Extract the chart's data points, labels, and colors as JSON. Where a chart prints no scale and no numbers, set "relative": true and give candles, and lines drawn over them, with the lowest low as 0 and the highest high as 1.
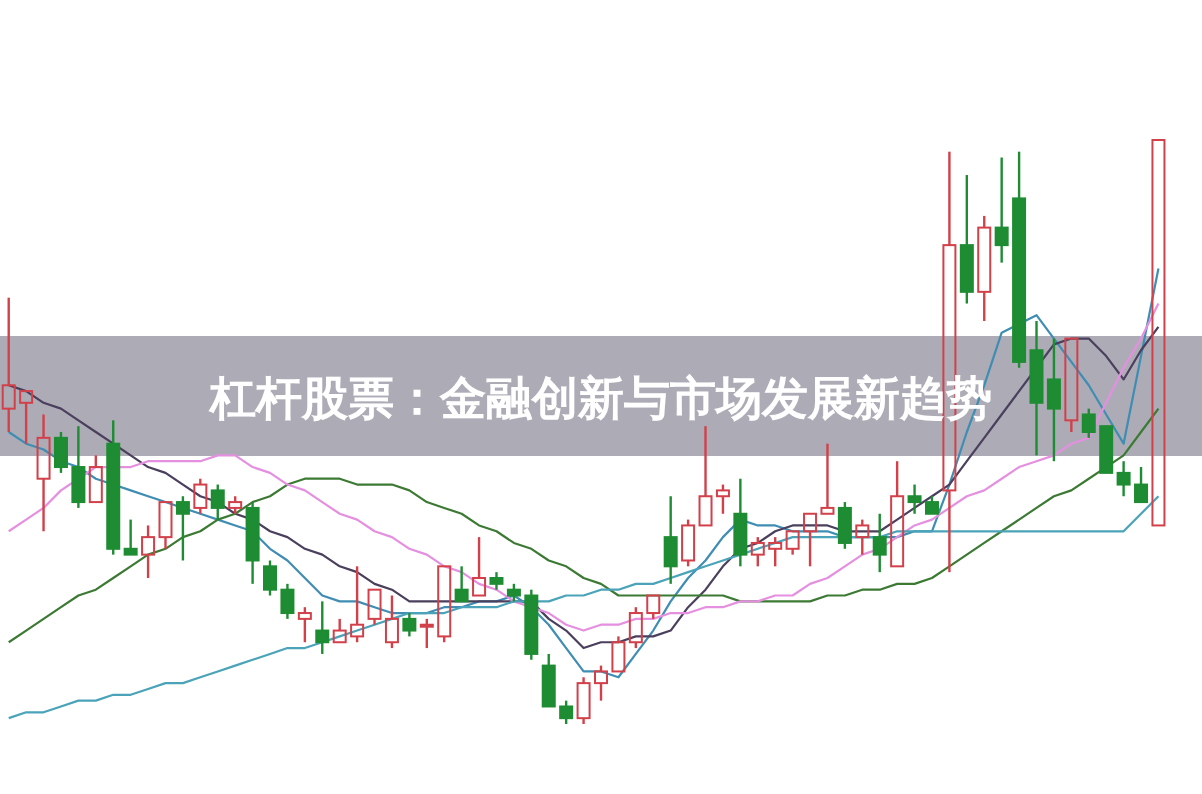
{
  "chart_data": {
    "type": "candlestick",
    "relative": true,
    "title": "杠杆股票：金融创新与市场发展新趋势",
    "categories": [
      null,
      null,
      null,
      null,
      null,
      null,
      null,
      null,
      null,
      null,
      null,
      null,
      null,
      null,
      null,
      null,
      null,
      null,
      null,
      null,
      null,
      null,
      null,
      null,
      null,
      null,
      null,
      null,
      null,
      null,
      null,
      null,
      null,
      null,
      null,
      null,
      null,
      null,
      null,
      null,
      null,
      null,
      null,
      null,
      null,
      null,
      null,
      null,
      null,
      null,
      null,
      null,
      null,
      null,
      null,
      null,
      null,
      null,
      null,
      null,
      null,
      null,
      null,
      null,
      null,
      null,
      null
    ],
    "colors": [
      "#d2404a",
      "#d2404a",
      "#d2404a",
      "#1e8c32",
      "#1e8c32",
      "#d2404a",
      "#1e8c32",
      "#1e8c32",
      "#d2404a",
      "#d2404a",
      "#1e8c32",
      "#d2404a",
      "#1e8c32",
      "#d2404a",
      "#1e8c32",
      "#1e8c32",
      "#1e8c32",
      "#d2404a",
      "#1e8c32",
      "#d2404a",
      "#d2404a",
      "#d2404a",
      "#d2404a",
      "#1e8c32",
      "#d2404a",
      "#d2404a",
      "#1e8c32",
      "#d2404a",
      "#1e8c32",
      "#1e8c32",
      "#1e8c32",
      "#1e8c32",
      "#1e8c32",
      "#d2404a",
      "#d2404a",
      "#d2404a",
      "#d2404a",
      "#d2404a",
      "#1e8c32",
      "#d2404a",
      "#d2404a",
      "#d2404a",
      "#1e8c32",
      "#d2404a",
      "#d2404a",
      "#d2404a",
      "#d2404a",
      "#d2404a",
      "#1e8c32",
      "#d2404a",
      "#1e8c32",
      "#d2404a",
      "#1e8c32",
      "#1e8c32",
      "#d2404a",
      "#1e8c32",
      "#d2404a",
      "#1e8c32",
      "#1e8c32",
      "#1e8c32",
      "#1e8c32",
      "#d2404a",
      "#1e8c32",
      "#1e8c32",
      "#1e8c32",
      "#1e8c32",
      "#d2404a"
    ],
    "ohlc": [
      [
        0.54,
        0.73,
        0.5,
        0.58
      ],
      [
        0.55,
        0.57,
        0.48,
        0.57
      ],
      [
        0.42,
        0.53,
        0.33,
        0.49
      ],
      [
        0.49,
        0.5,
        0.43,
        0.44
      ],
      [
        0.44,
        0.51,
        0.37,
        0.38
      ],
      [
        0.38,
        0.46,
        0.38,
        0.44
      ],
      [
        0.48,
        0.52,
        0.29,
        0.3
      ],
      [
        0.3,
        0.35,
        0.29,
        0.29
      ],
      [
        0.29,
        0.34,
        0.25,
        0.32
      ],
      [
        0.32,
        0.38,
        0.3,
        0.38
      ],
      [
        0.38,
        0.39,
        0.28,
        0.36
      ],
      [
        0.37,
        0.42,
        0.36,
        0.41
      ],
      [
        0.4,
        0.41,
        0.35,
        0.37
      ],
      [
        0.37,
        0.39,
        0.36,
        0.38
      ],
      [
        0.37,
        0.38,
        0.24,
        0.28
      ],
      [
        0.27,
        0.28,
        0.22,
        0.23
      ],
      [
        0.23,
        0.24,
        0.18,
        0.19
      ],
      [
        0.18,
        0.2,
        0.14,
        0.19
      ],
      [
        0.16,
        0.21,
        0.12,
        0.14
      ],
      [
        0.14,
        0.18,
        0.14,
        0.16
      ],
      [
        0.15,
        0.27,
        0.14,
        0.17
      ],
      [
        0.18,
        0.23,
        0.17,
        0.23
      ],
      [
        0.14,
        0.22,
        0.13,
        0.18
      ],
      [
        0.18,
        0.19,
        0.15,
        0.16
      ],
      [
        0.17,
        0.18,
        0.13,
        0.17
      ],
      [
        0.15,
        0.27,
        0.14,
        0.27
      ],
      [
        0.23,
        0.27,
        0.21,
        0.21
      ],
      [
        0.22,
        0.32,
        0.22,
        0.25
      ],
      [
        0.25,
        0.26,
        0.23,
        0.24
      ],
      [
        0.23,
        0.24,
        0.21,
        0.22
      ],
      [
        0.22,
        0.23,
        0.11,
        0.12
      ],
      [
        0.1,
        0.12,
        0.03,
        0.03
      ],
      [
        0.03,
        0.04,
        0,
        0.01
      ],
      [
        0.01,
        0.08,
        0,
        0.07
      ],
      [
        0.07,
        0.1,
        0.04,
        0.09
      ],
      [
        0.09,
        0.15,
        0.09,
        0.14
      ],
      [
        0.14,
        0.2,
        0.13,
        0.19
      ],
      [
        0.19,
        0.22,
        0.18,
        0.22
      ],
      [
        0.32,
        0.39,
        0.24,
        0.27
      ],
      [
        0.28,
        0.35,
        0.27,
        0.34
      ],
      [
        0.34,
        0.51,
        0.34,
        0.39
      ],
      [
        0.39,
        0.41,
        0.36,
        0.4
      ],
      [
        0.36,
        0.42,
        0.27,
        0.29
      ],
      [
        0.29,
        0.32,
        0.27,
        0.31
      ],
      [
        0.3,
        0.32,
        0.27,
        0.31
      ],
      [
        0.3,
        0.33,
        0.29,
        0.33
      ],
      [
        0.33,
        0.36,
        0.27,
        0.36
      ],
      [
        0.36,
        0.48,
        0.36,
        0.37
      ],
      [
        0.37,
        0.38,
        0.3,
        0.31
      ],
      [
        0.32,
        0.35,
        0.29,
        0.34
      ],
      [
        0.32,
        0.36,
        0.26,
        0.29
      ],
      [
        0.27,
        0.45,
        0.27,
        0.39
      ],
      [
        0.39,
        0.41,
        0.36,
        0.38
      ],
      [
        0.38,
        0.39,
        0.36,
        0.36
      ],
      [
        0.4,
        0.98,
        0.26,
        0.82
      ],
      [
        0.82,
        0.94,
        0.72,
        0.74
      ],
      [
        0.74,
        0.87,
        0.69,
        0.85
      ],
      [
        0.85,
        0.97,
        0.79,
        0.82
      ],
      [
        0.9,
        0.98,
        0.61,
        0.62
      ],
      [
        0.64,
        0.69,
        0.46,
        0.55
      ],
      [
        0.59,
        0.66,
        0.45,
        0.54
      ],
      [
        0.52,
        0.66,
        0.5,
        0.66
      ],
      [
        0.53,
        0.54,
        0.49,
        0.5
      ],
      [
        0.51,
        0.51,
        0.43,
        0.43
      ],
      [
        0.43,
        0.45,
        0.39,
        0.41
      ],
      [
        0.41,
        0.44,
        0.38,
        0.38
      ],
      [
        0.34,
        1,
        0.34,
        1
      ]
    ],
    "series": [
      {
        "type": "line",
        "color": "#3f8db3",
        "values": [
          0.5,
          0.48,
          0.47,
          0.45,
          0.44,
          0.42,
          0.41,
          0.4,
          0.39,
          0.38,
          0.37,
          0.36,
          0.35,
          0.34,
          0.33,
          0.3,
          0.28,
          0.25,
          0.22,
          0.21,
          0.21,
          0.2,
          0.19,
          0.19,
          0.19,
          0.2,
          0.2,
          0.21,
          0.21,
          0.22,
          0.2,
          0.17,
          0.13,
          0.09,
          0.09,
          0.08,
          0.12,
          0.16,
          0.21,
          0.25,
          0.28,
          0.32,
          0.35,
          0.34,
          0.34,
          0.33,
          0.33,
          0.33,
          0.32,
          0.32,
          0.32,
          0.32,
          0.33,
          0.33,
          0.41,
          0.5,
          0.58,
          0.67,
          null,
          0.7,
          0.66,
          0.62,
          0.58,
          0.53,
          0.48,
          0.63,
          0.78
        ]
      },
      {
        "type": "line",
        "color": "#4a3f5c",
        "values": [
          0.58,
          0.57,
          0.55,
          0.54,
          0.52,
          0.5,
          0.48,
          0.46,
          0.44,
          0.43,
          0.41,
          0.39,
          0.38,
          0.36,
          0.35,
          0.33,
          0.32,
          0.3,
          0.29,
          0.27,
          0.26,
          0.24,
          0.23,
          0.21,
          0.21,
          0.21,
          0.21,
          0.21,
          0.21,
          0.21,
          0.21,
          0.18,
          0.16,
          0.13,
          0.14,
          0.14,
          0.15,
          0.15,
          0.16,
          0.2,
          0.23,
          0.27,
          0.3,
          0.31,
          0.33,
          0.34,
          0.34,
          0.34,
          0.33,
          0.33,
          0.33,
          0.35,
          0.37,
          0.39,
          0.41,
          0.45,
          0.49,
          0.53,
          0.57,
          0.61,
          0.65,
          0.66,
          0.66,
          0.63,
          0.59,
          0.64,
          0.68
        ]
      },
      {
        "type": "line",
        "color": "#3c7a34",
        "values": [
          0.14,
          0.16,
          0.18,
          0.2,
          0.22,
          0.23,
          0.25,
          0.27,
          0.29,
          0.3,
          0.32,
          0.33,
          0.35,
          0.36,
          0.38,
          0.39,
          0.41,
          0.42,
          0.42,
          0.42,
          0.41,
          0.41,
          0.41,
          0.4,
          0.38,
          0.37,
          0.36,
          0.34,
          0.33,
          0.31,
          0.3,
          0.28,
          0.27,
          0.25,
          0.24,
          0.22,
          0.22,
          0.22,
          0.22,
          0.22,
          0.22,
          0.22,
          0.21,
          0.21,
          0.21,
          0.21,
          0.21,
          0.22,
          0.22,
          0.23,
          0.23,
          0.24,
          0.24,
          0.25,
          0.27,
          0.29,
          0.31,
          0.33,
          0.35,
          0.37,
          0.39,
          0.4,
          0.42,
          0.44,
          0.46,
          0.5,
          0.54
        ]
      },
      {
        "type": "line",
        "color": "#e58fe0",
        "values": [
          0.33,
          0.35,
          0.37,
          0.4,
          0.42,
          0.44,
          0.44,
          0.44,
          0.45,
          0.45,
          0.45,
          0.45,
          0.46,
          0.46,
          0.44,
          0.43,
          0.41,
          0.4,
          0.38,
          0.36,
          0.35,
          0.33,
          0.32,
          0.3,
          0.29,
          0.27,
          0.26,
          0.24,
          0.23,
          0.21,
          0.2,
          0.19,
          0.17,
          0.16,
          0.17,
          0.17,
          0.18,
          0.18,
          0.19,
          0.19,
          0.2,
          0.2,
          0.21,
          0.21,
          0.22,
          0.22,
          0.24,
          0.25,
          0.27,
          0.29,
          0.3,
          0.32,
          0.34,
          0.35,
          0.37,
          0.39,
          0.4,
          0.42,
          0.44,
          0.45,
          0.46,
          0.48,
          0.49,
          0.55,
          0.61,
          0.66,
          0.72
        ]
      },
      {
        "type": "line",
        "color": "#4aa3b8",
        "values": [
          0.01,
          0.02,
          0.02,
          0.03,
          0.04,
          0.04,
          0.05,
          0.05,
          0.06,
          0.07,
          0.07,
          0.08,
          0.09,
          0.1,
          0.11,
          0.12,
          0.13,
          0.13,
          0.14,
          0.15,
          0.16,
          0.17,
          0.18,
          0.19,
          0.19,
          0.19,
          0.2,
          0.2,
          0.2,
          0.21,
          0.21,
          0.21,
          0.22,
          0.22,
          0.23,
          0.23,
          0.24,
          0.24,
          0.25,
          0.26,
          0.27,
          0.28,
          0.29,
          0.3,
          0.31,
          0.32,
          0.32,
          0.32,
          0.32,
          0.32,
          0.32,
          0.33,
          0.33,
          0.33,
          0.33,
          0.33,
          0.33,
          0.33,
          0.33,
          0.33,
          0.33,
          0.33,
          0.33,
          0.33,
          0.33,
          0.36,
          0.39
        ]
      }
    ]
  }
}
